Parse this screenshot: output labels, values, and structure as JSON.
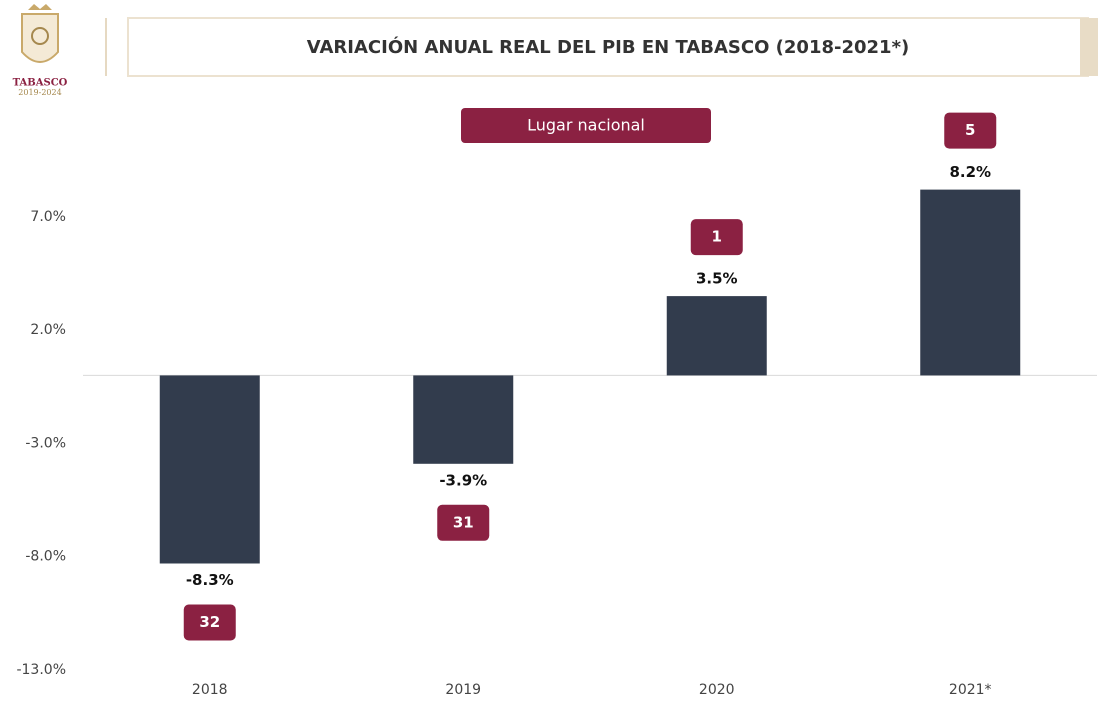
{
  "logo": {
    "name": "TABASCO",
    "years": "2019-2024"
  },
  "chart_data": {
    "type": "bar",
    "title": "VARIACIÓN ANUAL REAL DEL PIB EN TABASCO (2018-2021*)",
    "categories": [
      "2018",
      "2019",
      "2020",
      "2021*"
    ],
    "values": [
      -8.3,
      -3.9,
      3.5,
      8.2
    ],
    "value_labels": [
      "-8.3%",
      "-3.9%",
      "3.5%",
      "8.2%"
    ],
    "color": "#323c4d",
    "ylim": [
      -13,
      12
    ],
    "yticks": [
      {
        "value": 7,
        "label": "7.0%"
      },
      {
        "value": 2,
        "label": "2.0%"
      },
      {
        "value": -3,
        "label": "-3.0%"
      },
      {
        "value": -8,
        "label": "-8.0%"
      },
      {
        "value": -13,
        "label": "-13.0%"
      }
    ],
    "rank_legend": "Lugar nacional",
    "ranks": [
      32,
      31,
      1,
      5
    ],
    "rank_color": "#8b2142"
  }
}
